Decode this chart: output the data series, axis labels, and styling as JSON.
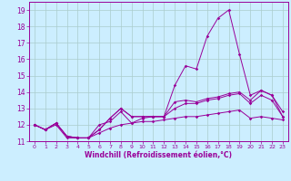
{
  "xlabel": "Windchill (Refroidissement éolien,°C)",
  "x": [
    0,
    1,
    2,
    3,
    4,
    5,
    6,
    7,
    8,
    9,
    10,
    11,
    12,
    13,
    14,
    15,
    16,
    17,
    18,
    19,
    20,
    21,
    22,
    23
  ],
  "line1": [
    12.0,
    11.7,
    12.1,
    11.3,
    11.2,
    11.2,
    12.0,
    12.2,
    12.8,
    12.1,
    12.4,
    12.5,
    12.5,
    14.4,
    15.6,
    15.4,
    17.4,
    18.5,
    19.0,
    16.3,
    13.8,
    14.1,
    13.8,
    12.5
  ],
  "line2": [
    12.0,
    11.7,
    12.1,
    11.3,
    11.2,
    11.2,
    11.7,
    12.4,
    13.0,
    12.5,
    12.5,
    12.5,
    12.5,
    13.4,
    13.5,
    13.4,
    13.6,
    13.7,
    13.9,
    14.0,
    13.5,
    14.1,
    13.8,
    12.8
  ],
  "line3": [
    12.0,
    11.7,
    12.1,
    11.3,
    11.2,
    11.2,
    11.7,
    12.4,
    13.0,
    12.5,
    12.5,
    12.5,
    12.5,
    13.0,
    13.3,
    13.3,
    13.5,
    13.6,
    13.8,
    13.9,
    13.3,
    13.8,
    13.5,
    12.5
  ],
  "line4": [
    12.0,
    11.7,
    12.0,
    11.2,
    11.2,
    11.2,
    11.5,
    11.8,
    12.0,
    12.1,
    12.2,
    12.2,
    12.3,
    12.4,
    12.5,
    12.5,
    12.6,
    12.7,
    12.8,
    12.9,
    12.4,
    12.5,
    12.4,
    12.3
  ],
  "line_color": "#990099",
  "bg_color": "#cceeff",
  "grid_color": "#aacccc",
  "ylim": [
    11.0,
    19.5
  ],
  "xlim": [
    -0.5,
    23.5
  ],
  "yticks": [
    11,
    12,
    13,
    14,
    15,
    16,
    17,
    18,
    19
  ],
  "xticks": [
    0,
    1,
    2,
    3,
    4,
    5,
    6,
    7,
    8,
    9,
    10,
    11,
    12,
    13,
    14,
    15,
    16,
    17,
    18,
    19,
    20,
    21,
    22,
    23
  ],
  "xtick_labels": [
    "0",
    "1",
    "2",
    "3",
    "4",
    "5",
    "6",
    "7",
    "8",
    "9",
    "10",
    "11",
    "12",
    "13",
    "14",
    "15",
    "16",
    "17",
    "18",
    "19",
    "20",
    "21",
    "22",
    "23"
  ]
}
